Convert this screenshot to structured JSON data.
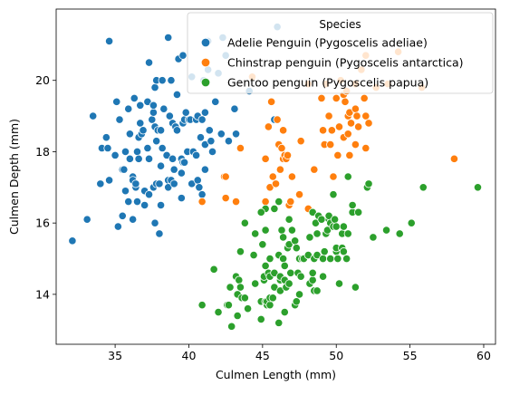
{
  "chart_data": {
    "type": "scatter",
    "xlabel": "Culmen Length (mm)",
    "ylabel": "Culmen Depth (mm)",
    "xlim": [
      31.0,
      60.8
    ],
    "ylim": [
      12.6,
      22.0
    ],
    "xticks": [
      35,
      40,
      45,
      50,
      55,
      60
    ],
    "yticks": [
      14,
      16,
      18,
      20
    ],
    "xtick_labels": [
      "35",
      "40",
      "45",
      "50",
      "55",
      "60"
    ],
    "ytick_labels": [
      "14",
      "16",
      "18",
      "20"
    ],
    "grid": false,
    "legend": {
      "title": "Species",
      "placement": "top-right"
    },
    "series": [
      {
        "name": "Adelie Penguin (Pygoscelis adeliae)",
        "color": "#1f77b4",
        "points": [
          [
            32.1,
            15.5
          ],
          [
            33.1,
            16.1
          ],
          [
            33.5,
            19.0
          ],
          [
            34.0,
            17.1
          ],
          [
            34.1,
            18.1
          ],
          [
            34.4,
            18.4
          ],
          [
            34.5,
            18.1
          ],
          [
            34.6,
            21.1
          ],
          [
            34.6,
            17.2
          ],
          [
            35.0,
            17.9
          ],
          [
            35.1,
            19.4
          ],
          [
            35.2,
            15.9
          ],
          [
            35.3,
            18.9
          ],
          [
            35.5,
            17.5
          ],
          [
            35.5,
            16.2
          ],
          [
            35.6,
            17.5
          ],
          [
            35.7,
            16.9
          ],
          [
            35.7,
            18.0
          ],
          [
            35.9,
            19.2
          ],
          [
            35.9,
            16.6
          ],
          [
            36.0,
            17.8
          ],
          [
            36.0,
            18.5
          ],
          [
            36.2,
            17.3
          ],
          [
            36.2,
            16.1
          ],
          [
            36.2,
            17.2
          ],
          [
            36.3,
            19.5
          ],
          [
            36.4,
            17.0
          ],
          [
            36.5,
            18.0
          ],
          [
            36.5,
            16.6
          ],
          [
            36.6,
            17.8
          ],
          [
            36.6,
            18.4
          ],
          [
            36.7,
            18.8
          ],
          [
            36.7,
            19.3
          ],
          [
            36.8,
            18.5
          ],
          [
            36.9,
            18.6
          ],
          [
            37.0,
            16.9
          ],
          [
            37.0,
            16.5
          ],
          [
            37.2,
            18.1
          ],
          [
            37.2,
            19.4
          ],
          [
            37.3,
            20.5
          ],
          [
            37.3,
            17.8
          ],
          [
            37.3,
            16.8
          ],
          [
            37.5,
            18.9
          ],
          [
            37.6,
            19.1
          ],
          [
            37.6,
            17.0
          ],
          [
            37.6,
            19.3
          ],
          [
            37.7,
            18.7
          ],
          [
            37.7,
            16.0
          ],
          [
            37.7,
            19.8
          ],
          [
            37.8,
            18.3
          ],
          [
            37.8,
            17.1
          ],
          [
            37.8,
            20.0
          ],
          [
            37.9,
            18.6
          ],
          [
            38.0,
            17.1
          ],
          [
            38.0,
            15.7
          ],
          [
            38.1,
            18.6
          ],
          [
            38.1,
            17.6
          ],
          [
            38.1,
            16.5
          ],
          [
            38.2,
            18.1
          ],
          [
            38.2,
            20.0
          ],
          [
            38.3,
            19.2
          ],
          [
            38.5,
            17.9
          ],
          [
            38.6,
            17.2
          ],
          [
            38.6,
            21.2
          ],
          [
            38.6,
            17.0
          ],
          [
            38.7,
            19.0
          ],
          [
            38.8,
            17.2
          ],
          [
            38.8,
            20.0
          ],
          [
            38.9,
            18.8
          ],
          [
            39.0,
            17.1
          ],
          [
            39.0,
            17.5
          ],
          [
            39.1,
            18.7
          ],
          [
            39.2,
            19.6
          ],
          [
            39.2,
            18.6
          ],
          [
            39.3,
            20.6
          ],
          [
            39.5,
            17.4
          ],
          [
            39.5,
            16.7
          ],
          [
            39.5,
            17.8
          ],
          [
            39.6,
            17.7
          ],
          [
            39.6,
            18.8
          ],
          [
            39.7,
            17.7
          ],
          [
            39.7,
            18.9
          ],
          [
            39.8,
            19.1
          ],
          [
            39.9,
            18.0
          ],
          [
            40.0,
            18.9
          ],
          [
            40.1,
            18.9
          ],
          [
            40.2,
            17.1
          ],
          [
            40.2,
            20.1
          ],
          [
            40.3,
            18.0
          ],
          [
            40.5,
            17.9
          ],
          [
            40.5,
            18.9
          ],
          [
            40.6,
            19.0
          ],
          [
            40.6,
            17.2
          ],
          [
            40.7,
            17.0
          ],
          [
            40.8,
            18.4
          ],
          [
            40.9,
            18.9
          ],
          [
            40.9,
            16.8
          ],
          [
            41.0,
            20.0
          ],
          [
            41.1,
            18.2
          ],
          [
            41.1,
            19.1
          ],
          [
            41.1,
            17.5
          ],
          [
            41.3,
            21.1
          ],
          [
            41.3,
            20.3
          ],
          [
            41.4,
            18.6
          ],
          [
            41.5,
            18.3
          ],
          [
            41.6,
            18.0
          ],
          [
            41.8,
            19.4
          ],
          [
            42.0,
            20.2
          ],
          [
            42.2,
            18.5
          ],
          [
            42.3,
            21.2
          ],
          [
            42.5,
            20.7
          ],
          [
            42.7,
            18.3
          ],
          [
            43.1,
            19.2
          ],
          [
            43.2,
            18.5
          ],
          [
            44.1,
            19.7
          ],
          [
            45.8,
            18.9
          ],
          [
            46.0,
            21.5
          ],
          [
            38.9,
            17.8
          ],
          [
            36.4,
            17.1
          ],
          [
            39.6,
            20.7
          ]
        ]
      },
      {
        "name": "Chinstrap penguin (Pygoscelis antarctica)",
        "color": "#ff7f0e",
        "points": [
          [
            40.9,
            16.6
          ],
          [
            42.4,
            17.3
          ],
          [
            42.5,
            16.7
          ],
          [
            42.5,
            17.3
          ],
          [
            43.2,
            16.6
          ],
          [
            43.5,
            18.1
          ],
          [
            45.2,
            17.8
          ],
          [
            45.2,
            16.6
          ],
          [
            45.4,
            18.7
          ],
          [
            45.5,
            17.0
          ],
          [
            45.6,
            19.4
          ],
          [
            45.7,
            17.3
          ],
          [
            45.9,
            17.1
          ],
          [
            46.0,
            18.9
          ],
          [
            46.1,
            18.2
          ],
          [
            46.2,
            17.5
          ],
          [
            46.4,
            17.8
          ],
          [
            46.4,
            18.6
          ],
          [
            46.5,
            17.9
          ],
          [
            46.6,
            17.8
          ],
          [
            46.7,
            17.9
          ],
          [
            46.8,
            16.5
          ],
          [
            46.9,
            16.6
          ],
          [
            47.0,
            17.3
          ],
          [
            47.5,
            16.8
          ],
          [
            47.6,
            18.3
          ],
          [
            48.1,
            16.4
          ],
          [
            48.5,
            17.5
          ],
          [
            49.0,
            19.5
          ],
          [
            49.2,
            18.2
          ],
          [
            49.3,
            19.9
          ],
          [
            49.5,
            19.0
          ],
          [
            49.6,
            18.2
          ],
          [
            49.7,
            18.6
          ],
          [
            49.8,
            17.3
          ],
          [
            50.0,
            19.5
          ],
          [
            50.1,
            17.9
          ],
          [
            50.2,
            18.7
          ],
          [
            50.3,
            20.0
          ],
          [
            50.5,
            18.4
          ],
          [
            50.5,
            19.6
          ],
          [
            50.6,
            19.4
          ],
          [
            50.7,
            19.7
          ],
          [
            50.8,
            18.5
          ],
          [
            50.8,
            19.0
          ],
          [
            50.9,
            17.9
          ],
          [
            50.9,
            19.1
          ],
          [
            51.0,
            18.8
          ],
          [
            51.3,
            18.2
          ],
          [
            51.3,
            19.2
          ],
          [
            51.3,
            19.9
          ],
          [
            51.4,
            19.0
          ],
          [
            51.5,
            18.7
          ],
          [
            51.7,
            20.3
          ],
          [
            51.9,
            19.5
          ],
          [
            52.0,
            18.1
          ],
          [
            52.0,
            19.0
          ],
          [
            52.0,
            20.7
          ],
          [
            52.2,
            18.8
          ],
          [
            52.7,
            19.8
          ],
          [
            53.5,
            19.9
          ],
          [
            54.2,
            20.8
          ],
          [
            55.8,
            19.8
          ],
          [
            58.0,
            17.8
          ],
          [
            48.1,
            19.9
          ],
          [
            46.3,
            18.1
          ],
          [
            49.1,
            18.6
          ],
          [
            44.3,
            20.1
          ]
        ]
      },
      {
        "name": "Gentoo penguin (Pygoscelis papua)",
        "color": "#2ca02c",
        "points": [
          [
            40.9,
            13.7
          ],
          [
            41.7,
            14.7
          ],
          [
            42.0,
            13.5
          ],
          [
            42.6,
            13.7
          ],
          [
            42.7,
            13.7
          ],
          [
            42.8,
            14.2
          ],
          [
            42.9,
            13.1
          ],
          [
            43.2,
            14.5
          ],
          [
            43.3,
            13.4
          ],
          [
            43.3,
            14.0
          ],
          [
            43.4,
            14.4
          ],
          [
            43.5,
            14.2
          ],
          [
            43.5,
            15.2
          ],
          [
            43.6,
            13.9
          ],
          [
            43.8,
            13.9
          ],
          [
            44.0,
            13.6
          ],
          [
            44.4,
            15.1
          ],
          [
            44.5,
            14.3
          ],
          [
            44.5,
            15.7
          ],
          [
            44.9,
            13.3
          ],
          [
            44.9,
            13.8
          ],
          [
            45.0,
            15.4
          ],
          [
            45.1,
            14.4
          ],
          [
            45.1,
            14.5
          ],
          [
            45.2,
            13.8
          ],
          [
            45.2,
            14.8
          ],
          [
            45.2,
            15.8
          ],
          [
            45.2,
            16.4
          ],
          [
            45.3,
            13.7
          ],
          [
            45.3,
            13.8
          ],
          [
            45.4,
            14.6
          ],
          [
            45.5,
            13.7
          ],
          [
            45.5,
            13.9
          ],
          [
            45.5,
            14.5
          ],
          [
            45.5,
            15.0
          ],
          [
            45.7,
            13.9
          ],
          [
            45.8,
            14.2
          ],
          [
            45.8,
            14.6
          ],
          [
            46.1,
            13.2
          ],
          [
            46.1,
            15.1
          ],
          [
            46.2,
            14.1
          ],
          [
            46.2,
            14.4
          ],
          [
            46.2,
            14.5
          ],
          [
            46.3,
            15.8
          ],
          [
            46.4,
            15.0
          ],
          [
            46.4,
            15.6
          ],
          [
            46.5,
            13.5
          ],
          [
            46.5,
            14.4
          ],
          [
            46.5,
            14.8
          ],
          [
            46.6,
            14.2
          ],
          [
            46.7,
            15.3
          ],
          [
            46.8,
            14.3
          ],
          [
            46.8,
            15.4
          ],
          [
            46.8,
            16.1
          ],
          [
            46.9,
            14.6
          ],
          [
            47.0,
            15.8
          ],
          [
            47.2,
            13.7
          ],
          [
            47.2,
            15.5
          ],
          [
            47.3,
            13.8
          ],
          [
            47.3,
            15.3
          ],
          [
            47.4,
            14.6
          ],
          [
            47.5,
            14.0
          ],
          [
            47.5,
            15.0
          ],
          [
            47.6,
            14.5
          ],
          [
            47.7,
            15.0
          ],
          [
            47.8,
            15.0
          ],
          [
            48.1,
            15.1
          ],
          [
            48.2,
            14.3
          ],
          [
            48.2,
            15.6
          ],
          [
            48.4,
            14.4
          ],
          [
            48.4,
            14.6
          ],
          [
            48.4,
            16.3
          ],
          [
            48.5,
            14.1
          ],
          [
            48.5,
            15.0
          ],
          [
            48.6,
            16.0
          ],
          [
            48.7,
            14.1
          ],
          [
            48.7,
            15.1
          ],
          [
            48.7,
            15.7
          ],
          [
            48.8,
            16.2
          ],
          [
            49.0,
            16.1
          ],
          [
            49.1,
            14.5
          ],
          [
            49.1,
            15.0
          ],
          [
            49.2,
            15.2
          ],
          [
            49.3,
            15.7
          ],
          [
            49.4,
            15.8
          ],
          [
            49.5,
            16.1
          ],
          [
            49.5,
            16.2
          ],
          [
            49.6,
            15.0
          ],
          [
            49.6,
            16.0
          ],
          [
            49.8,
            15.9
          ],
          [
            49.8,
            16.8
          ],
          [
            49.9,
            16.1
          ],
          [
            50.0,
            15.2
          ],
          [
            50.0,
            15.3
          ],
          [
            50.0,
            15.9
          ],
          [
            50.1,
            15.0
          ],
          [
            50.2,
            14.3
          ],
          [
            50.4,
            15.3
          ],
          [
            50.4,
            15.7
          ],
          [
            50.5,
            15.2
          ],
          [
            50.5,
            15.9
          ],
          [
            50.7,
            15.0
          ],
          [
            50.8,
            15.7
          ],
          [
            50.8,
            17.3
          ],
          [
            51.1,
            16.3
          ],
          [
            51.1,
            16.5
          ],
          [
            51.3,
            14.2
          ],
          [
            51.5,
            16.3
          ],
          [
            52.1,
            17.0
          ],
          [
            52.2,
            17.1
          ],
          [
            52.5,
            15.6
          ],
          [
            53.4,
            15.8
          ],
          [
            54.3,
            15.7
          ],
          [
            55.1,
            16.0
          ],
          [
            55.9,
            17.0
          ],
          [
            59.6,
            17.0
          ],
          [
            46.1,
            16.6
          ],
          [
            45.8,
            16.4
          ],
          [
            44.9,
            16.3
          ],
          [
            43.8,
            16.0
          ]
        ]
      }
    ]
  }
}
